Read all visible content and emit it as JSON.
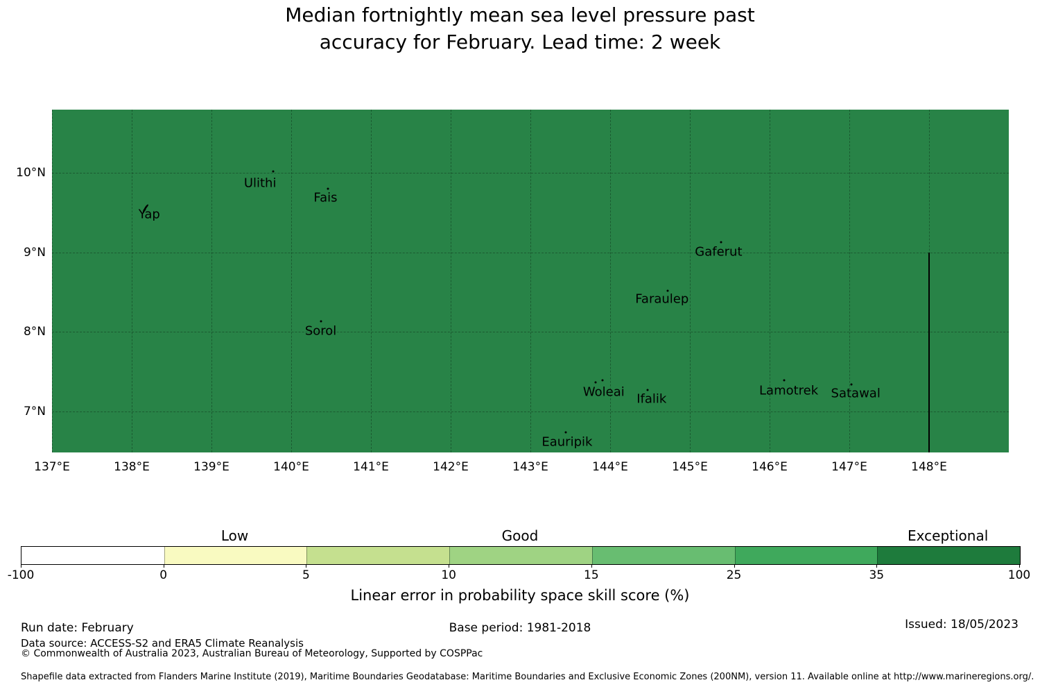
{
  "title": {
    "line1": "Median fortnightly mean sea level pressure past",
    "line2": "accuracy for February. Lead time: 2 week"
  },
  "chart_data": {
    "type": "heatmap",
    "subtype": "geographic-skill-score-map",
    "title": "Median fortnightly mean sea level pressure past accuracy for February. Lead time: 2 week",
    "x_axis": {
      "lon_range": [
        137,
        149
      ],
      "ticks": [
        {
          "label": "137°E",
          "lon": 137
        },
        {
          "label": "138°E",
          "lon": 138
        },
        {
          "label": "139°E",
          "lon": 139
        },
        {
          "label": "140°E",
          "lon": 140
        },
        {
          "label": "141°E",
          "lon": 141
        },
        {
          "label": "142°E",
          "lon": 142
        },
        {
          "label": "143°E",
          "lon": 143
        },
        {
          "label": "144°E",
          "lon": 144
        },
        {
          "label": "145°E",
          "lon": 145
        },
        {
          "label": "146°E",
          "lon": 146
        },
        {
          "label": "147°E",
          "lon": 147
        },
        {
          "label": "148°E",
          "lon": 148
        }
      ]
    },
    "y_axis": {
      "lat_range": [
        6.48,
        10.8
      ],
      "ticks": [
        {
          "label": "10°N",
          "lat": 10
        },
        {
          "label": "9°N",
          "lat": 9
        },
        {
          "label": "8°N",
          "lat": 8
        },
        {
          "label": "7°N",
          "lat": 7
        }
      ]
    },
    "grid": {
      "lon_lines": [
        137,
        138,
        139,
        140,
        141,
        142,
        143,
        144,
        145,
        146,
        147,
        148
      ],
      "lat_lines": [
        10,
        9,
        8,
        7
      ],
      "style": "dashed"
    },
    "field": {
      "description": "Uniform skill score fill over entire map region",
      "bin_range": "35 to 100",
      "category": "Exceptional",
      "map_fill_color": "#288347"
    },
    "islands": [
      {
        "name": "Yap",
        "label_lon": 138.22,
        "label_lat": 9.48,
        "lon": 138.17,
        "lat": 9.55,
        "marker": "island-shape"
      },
      {
        "name": "Ulithi",
        "label_lon": 139.61,
        "label_lat": 9.87,
        "lon": 139.77,
        "lat": 10.02,
        "marker": "dot"
      },
      {
        "name": "Fais",
        "label_lon": 140.43,
        "label_lat": 9.69,
        "lon": 140.46,
        "lat": 9.8,
        "marker": "dot"
      },
      {
        "name": "Sorol",
        "label_lon": 140.37,
        "label_lat": 8.01,
        "lon": 140.37,
        "lat": 8.13,
        "marker": "dot"
      },
      {
        "name": "Gaferut",
        "label_lon": 145.36,
        "label_lat": 9.01,
        "lon": 145.39,
        "lat": 9.13,
        "marker": "dot"
      },
      {
        "name": "Faraulep",
        "label_lon": 144.65,
        "label_lat": 8.41,
        "lon": 144.72,
        "lat": 8.52,
        "marker": "dot"
      },
      {
        "name": "Woleai",
        "label_lon": 143.92,
        "label_lat": 7.24,
        "lon": 143.86,
        "lat": 7.37,
        "marker": "two-dots"
      },
      {
        "name": "Ifalik",
        "label_lon": 144.52,
        "label_lat": 7.15,
        "lon": 144.47,
        "lat": 7.27,
        "marker": "dot"
      },
      {
        "name": "Lamotrek",
        "label_lon": 146.24,
        "label_lat": 7.26,
        "lon": 146.18,
        "lat": 7.39,
        "marker": "dot"
      },
      {
        "name": "Satawal",
        "label_lon": 147.08,
        "label_lat": 7.22,
        "lon": 147.03,
        "lat": 7.34,
        "marker": "dot"
      },
      {
        "name": "Eauripik",
        "label_lon": 143.46,
        "label_lat": 6.61,
        "lon": 143.44,
        "lat": 6.73,
        "marker": "dot"
      }
    ],
    "eez_boundary_line": {
      "lon": 148,
      "lat_top": 9.0,
      "lat_bottom": 6.48,
      "color": "#000000"
    },
    "colorbar": {
      "boundaries": [
        -100,
        0,
        5,
        10,
        15,
        25,
        35,
        100
      ],
      "tick_labels": [
        "-100",
        "0",
        "5",
        "10",
        "15",
        "25",
        "35",
        "100"
      ],
      "segment_colors": [
        "#ffffff",
        "#f9fac1",
        "#c5e08f",
        "#9fd383",
        "#68bd71",
        "#3fa95c",
        "#1e7b3c"
      ],
      "category_labels": [
        {
          "text": "Low",
          "segment_index": 1
        },
        {
          "text": "Good",
          "segment_index": 3
        },
        {
          "text": "Exceptional",
          "segment_index": 6
        }
      ],
      "axis_label": "Linear error in probability space skill score (%)"
    }
  },
  "footer": {
    "run_date": "Run date: February",
    "base_period": "Base period: 1981-2018",
    "issued": "Issued: 18/05/2023",
    "data_source": "Data source: ACCESS-S2 and ERA5 Climate Reanalysis",
    "copyright": "© Commonwealth of Australia 2023, Australian Bureau of Meteorology, Supported by COSPPac",
    "shapefile_note": "Shapefile data extracted from Flanders Marine Institute (2019), Maritime Boundaries Geodatabase: Maritime Boundaries and Exclusive Economic Zones (200NM), version 11. Available online at http://www.marineregions.org/."
  }
}
